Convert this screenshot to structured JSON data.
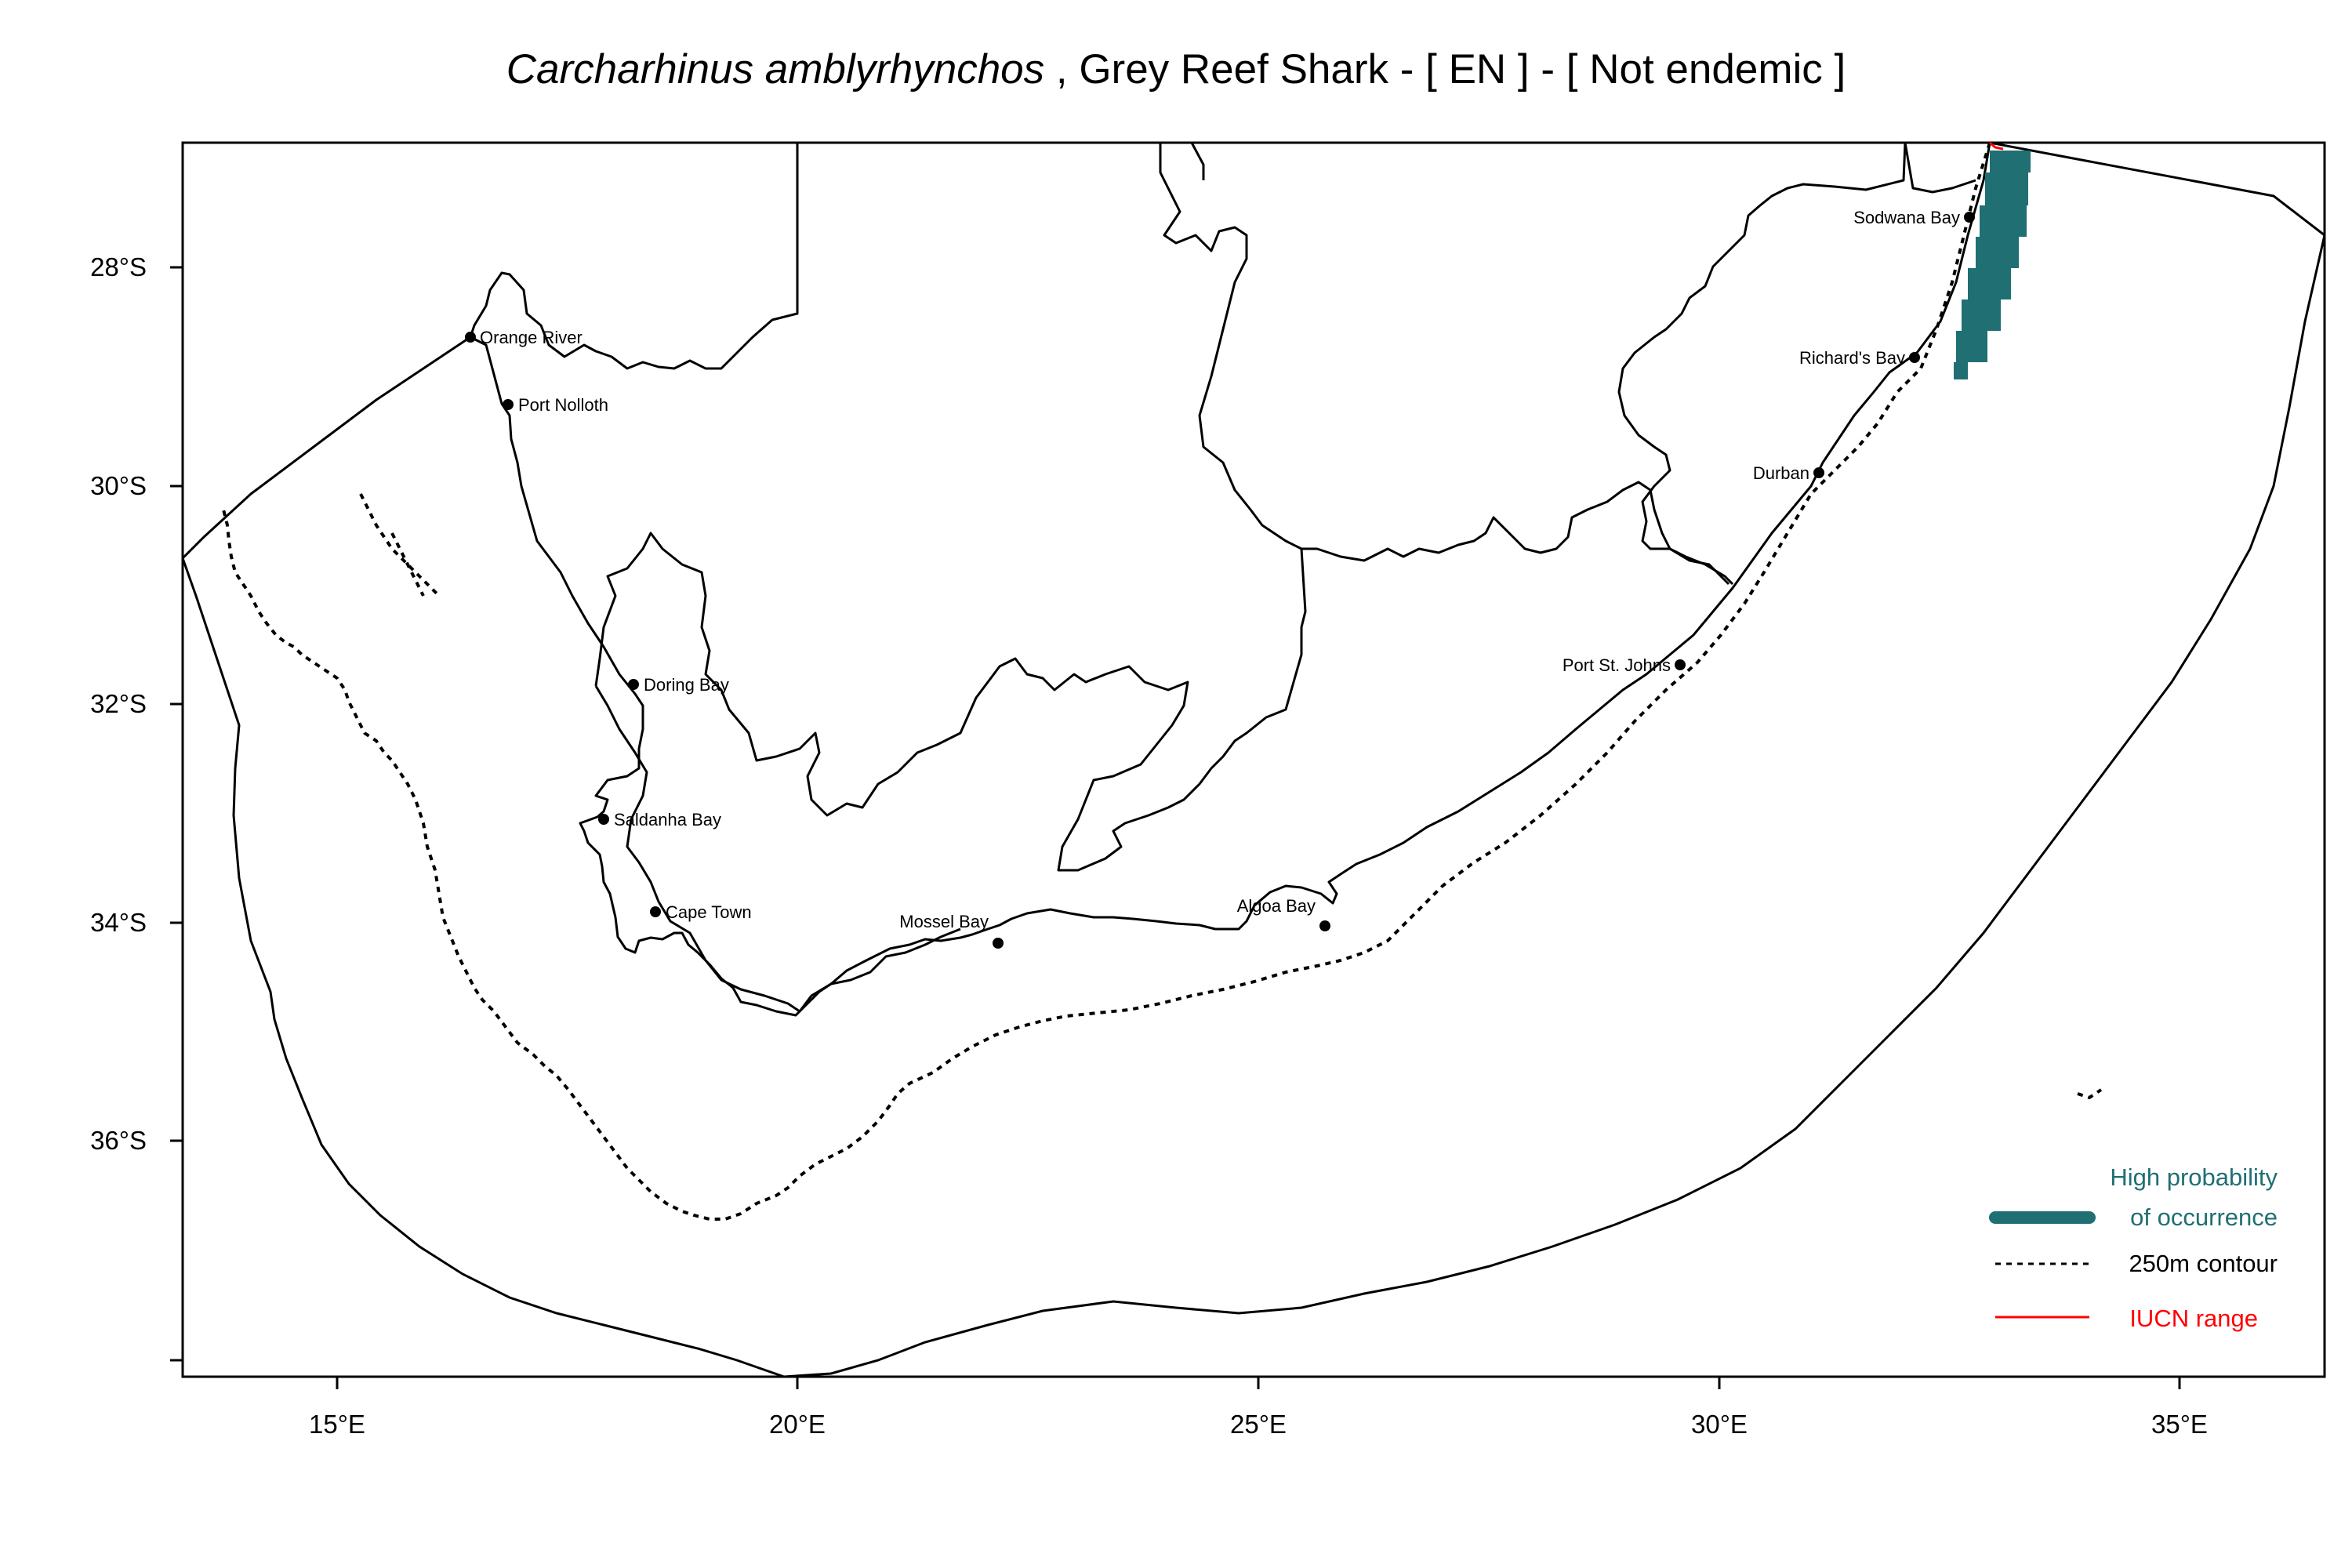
{
  "title": {
    "species": "Carcharhinus amblyrhynchos",
    "rest": " , Grey Reef Shark  - [ EN ] - [ Not endemic ]"
  },
  "axes": {
    "x_ticks": [
      "15°E",
      "20°E",
      "25°E",
      "30°E",
      "35°E"
    ],
    "y_ticks": [
      "28°S",
      "30°S",
      "32°S",
      "34°S",
      "36°S"
    ]
  },
  "places": [
    {
      "name": "Orange River",
      "lon": 16.45,
      "lat": -28.63
    },
    {
      "name": "Port Nolloth",
      "lon": 16.87,
      "lat": -29.25
    },
    {
      "name": "Doring Bay",
      "lon": 18.23,
      "lat": -31.82
    },
    {
      "name": "Saldanha Bay",
      "lon": 17.95,
      "lat": -33.05
    },
    {
      "name": "Cape Town",
      "lon": 18.45,
      "lat": -33.9
    },
    {
      "name": "Mossel Bay",
      "lon": 22.15,
      "lat": -34.18
    },
    {
      "name": "Algoa Bay",
      "lon": 25.7,
      "lat": -34.02
    },
    {
      "name": "Port St. Johns",
      "lon": 29.55,
      "lat": -31.62
    },
    {
      "name": "Durban",
      "lon": 31.03,
      "lat": -29.86
    },
    {
      "name": "Richard's Bay",
      "lon": 32.08,
      "lat": -28.8
    },
    {
      "name": "Sodwana Bay",
      "lon": 32.68,
      "lat": -27.53
    }
  ],
  "legend": {
    "high_probability_line1": "High probability",
    "high_probability_line2": "of occurrence",
    "contour": "250m contour",
    "iucn": "IUCN range"
  },
  "colors": {
    "occurrence": "#1f6f73",
    "iucn": "#ff0000",
    "coast": "#000000"
  }
}
